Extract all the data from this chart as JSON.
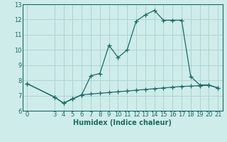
{
  "xlabel": "Humidex (Indice chaleur)",
  "background_color": "#ceecea",
  "grid_color": "#aed4d1",
  "line_color": "#1a6b65",
  "xlim": [
    -0.5,
    21.5
  ],
  "ylim": [
    6,
    13
  ],
  "xticks": [
    0,
    3,
    4,
    5,
    6,
    7,
    8,
    9,
    10,
    11,
    12,
    13,
    14,
    15,
    16,
    17,
    18,
    19,
    20,
    21
  ],
  "yticks": [
    6,
    7,
    8,
    9,
    10,
    11,
    12,
    13
  ],
  "line1_x": [
    0,
    3,
    4,
    5,
    6,
    7,
    8,
    9,
    10,
    11,
    12,
    13,
    14,
    15,
    16,
    17,
    18,
    19,
    20,
    21
  ],
  "line1_y": [
    7.78,
    6.9,
    6.5,
    6.78,
    7.05,
    8.3,
    8.45,
    10.3,
    9.5,
    10.0,
    11.9,
    12.3,
    12.6,
    11.95,
    11.95,
    11.95,
    8.25,
    7.7,
    7.7,
    7.5
  ],
  "line2_x": [
    0,
    3,
    4,
    5,
    6,
    7,
    8,
    9,
    10,
    11,
    12,
    13,
    14,
    15,
    16,
    17,
    18,
    19,
    20,
    21
  ],
  "line2_y": [
    7.78,
    6.9,
    6.5,
    6.78,
    7.05,
    7.1,
    7.15,
    7.2,
    7.25,
    7.3,
    7.35,
    7.4,
    7.45,
    7.5,
    7.55,
    7.6,
    7.62,
    7.65,
    7.68,
    7.5
  ],
  "marker": "+",
  "markersize": 4,
  "linewidth": 0.9,
  "fontsize_ticks": 6,
  "fontsize_xlabel": 7
}
